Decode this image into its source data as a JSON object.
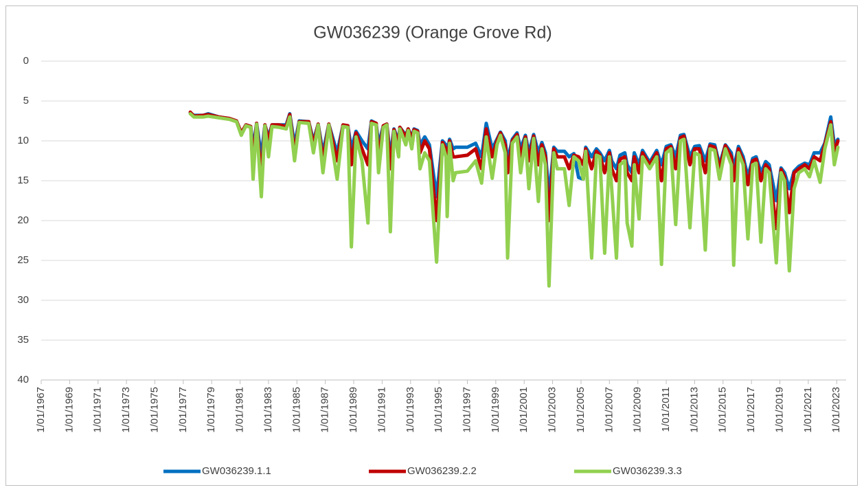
{
  "chart_data": {
    "type": "line",
    "title": "GW036239 (Orange Grove Rd)",
    "x": [
      "1977-07-01",
      "1977-10-01",
      "1978-06-01",
      "1978-10-01",
      "1979-07-01",
      "1980-04-01",
      "1980-10-01",
      "1981-02-01",
      "1981-06-01",
      "1981-10-01",
      "1981-12-01",
      "1982-03-01",
      "1982-07-01",
      "1982-10-01",
      "1983-01-01",
      "1983-04-01",
      "1983-10-01",
      "1984-04-01",
      "1984-07-01",
      "1984-11-01",
      "1985-03-01",
      "1985-11-01",
      "1986-03-01",
      "1986-07-01",
      "1986-11-01",
      "1987-04-01",
      "1987-11-01",
      "1988-04-01",
      "1988-08-01",
      "1988-11-01",
      "1989-03-01",
      "1989-08-01",
      "1990-01-01",
      "1990-04-01",
      "1990-08-01",
      "1990-10-01",
      "1991-02-01",
      "1991-05-01",
      "1991-08-01",
      "1991-11-01",
      "1992-03-01",
      "1992-04-01",
      "1992-09-01",
      "1992-11-01",
      "1993-02-01",
      "1993-04-01",
      "1993-07-01",
      "1993-09-01",
      "1994-01-01",
      "1994-05-01",
      "1994-11-01",
      "1995-04-01",
      "1995-07-01",
      "1995-08-01",
      "1995-10-01",
      "1996-01-01",
      "1996-03-01",
      "1997-01-01",
      "1997-08-01",
      "1998-01-01",
      "1998-05-01",
      "1998-10-01",
      "1999-02-01",
      "1999-05-01",
      "1999-09-01",
      "1999-11-01",
      "2000-03-01",
      "2000-07-01",
      "2000-10-01",
      "2001-02-01",
      "2001-05-01",
      "2001-09-01",
      "2002-01-01",
      "2002-04-01",
      "2002-07-01",
      "2002-10-01",
      "2003-02-01",
      "2003-05-01",
      "2003-11-01",
      "2004-03-01",
      "2004-07-01",
      "2004-11-01",
      "2005-03-01",
      "2005-05-01",
      "2005-10-01",
      "2006-02-01",
      "2006-05-01",
      "2006-09-01",
      "2007-01-01",
      "2007-03-01",
      "2007-07-01",
      "2007-10-01",
      "2008-02-01",
      "2008-04-01",
      "2008-08-01",
      "2008-10-01",
      "2009-02-01",
      "2009-05-01",
      "2009-11-01",
      "2010-05-01",
      "2010-09-01",
      "2011-01-01",
      "2011-05-01",
      "2011-09-01",
      "2012-01-01",
      "2012-04-01",
      "2012-09-01",
      "2013-01-01",
      "2013-05-01",
      "2013-10-01",
      "2014-02-01",
      "2014-06-01",
      "2014-10-01",
      "2015-03-01",
      "2015-08-01",
      "2015-10-01",
      "2016-02-01",
      "2016-06-01",
      "2016-10-01",
      "2017-02-01",
      "2017-05-01",
      "2017-09-01",
      "2018-01-01",
      "2018-04-01",
      "2018-10-01",
      "2019-02-01",
      "2019-05-01",
      "2019-09-01",
      "2020-01-01",
      "2020-05-01",
      "2020-10-01",
      "2021-02-01",
      "2021-06-01",
      "2021-11-01",
      "2022-03-01",
      "2022-08-01",
      "2022-11-01",
      "2023-02-01"
    ],
    "series": [
      {
        "name": "GW036239.1.1",
        "color": "#0070c0",
        "values": [
          6.5,
          6.8,
          6.8,
          6.6,
          7.0,
          7.2,
          7.5,
          9.0,
          8.0,
          8.2,
          11.0,
          7.8,
          12.0,
          8.0,
          9.5,
          8.0,
          8.0,
          8.0,
          6.6,
          10.5,
          7.5,
          7.6,
          10.0,
          7.9,
          11.5,
          7.9,
          11.5,
          8.0,
          8.1,
          11.0,
          8.8,
          10.0,
          11.0,
          7.5,
          7.8,
          10.5,
          8.1,
          7.9,
          12.0,
          8.5,
          10.0,
          8.3,
          9.3,
          8.5,
          9.5,
          8.5,
          8.7,
          10.5,
          9.5,
          10.5,
          17.0,
          10.0,
          10.5,
          11.5,
          9.8,
          11.0,
          10.8,
          10.8,
          10.3,
          12.0,
          7.8,
          11.0,
          9.8,
          8.9,
          10.0,
          12.5,
          9.8,
          9.0,
          11.0,
          9.3,
          11.5,
          9.2,
          11.5,
          10.2,
          11.5,
          17.0,
          10.8,
          11.3,
          11.3,
          12.0,
          11.6,
          14.6,
          14.8,
          10.8,
          12.0,
          11.0,
          11.5,
          12.5,
          11.2,
          12.5,
          13.5,
          11.8,
          11.5,
          13.0,
          14.0,
          11.5,
          13.0,
          11.2,
          12.7,
          11.2,
          13.0,
          10.7,
          10.5,
          12.0,
          9.3,
          9.2,
          12.0,
          10.7,
          10.6,
          12.5,
          10.4,
          10.5,
          13.0,
          10.5,
          11.5,
          13.5,
          10.7,
          12.0,
          14.5,
          12.2,
          12.0,
          14.0,
          12.6,
          13.0,
          17.5,
          13.4,
          14.0,
          16.0,
          13.8,
          13.2,
          12.8,
          13.0,
          11.5,
          11.5,
          10.3,
          7.0,
          10.5,
          9.8
        ]
      },
      {
        "name": "GW036239.2.2",
        "color": "#c00000",
        "values": [
          6.4,
          6.9,
          6.8,
          6.7,
          7.0,
          7.2,
          7.5,
          9.0,
          8.0,
          8.2,
          12.5,
          7.8,
          14.5,
          8.0,
          10.0,
          8.0,
          8.0,
          8.2,
          6.7,
          11.5,
          7.6,
          7.6,
          10.5,
          7.9,
          12.5,
          7.9,
          12.5,
          8.0,
          8.1,
          13.0,
          9.0,
          11.0,
          13.0,
          7.6,
          7.8,
          12.0,
          8.1,
          7.9,
          13.5,
          8.6,
          10.5,
          8.3,
          9.5,
          8.5,
          9.8,
          8.6,
          8.8,
          11.5,
          10.0,
          11.0,
          20.0,
          10.2,
          11.0,
          13.0,
          10.0,
          12.0,
          12.0,
          11.8,
          11.0,
          13.5,
          8.5,
          12.0,
          10.0,
          9.0,
          10.5,
          14.0,
          10.0,
          9.2,
          12.0,
          9.5,
          12.5,
          9.4,
          13.0,
          10.5,
          12.0,
          20.0,
          11.0,
          12.0,
          12.0,
          13.5,
          11.8,
          12.0,
          13.0,
          11.0,
          13.5,
          11.3,
          11.8,
          14.0,
          11.5,
          13.5,
          15.0,
          12.3,
          12.0,
          14.0,
          15.0,
          12.0,
          14.0,
          11.5,
          13.0,
          11.5,
          15.0,
          11.0,
          10.7,
          13.5,
          9.6,
          9.4,
          13.0,
          11.0,
          11.0,
          14.0,
          10.6,
          10.8,
          13.5,
          10.6,
          12.0,
          15.0,
          11.0,
          12.5,
          15.5,
          12.5,
          12.3,
          15.0,
          13.0,
          13.5,
          21.0,
          13.6,
          14.5,
          19.0,
          14.0,
          13.5,
          13.0,
          13.5,
          12.0,
          12.5,
          10.5,
          7.6,
          11.5,
          10.0
        ]
      },
      {
        "name": "GW036239.3.3",
        "color": "#92d050",
        "values": [
          6.6,
          7.0,
          7.0,
          6.9,
          7.1,
          7.3,
          7.6,
          9.3,
          8.1,
          8.3,
          14.8,
          7.9,
          17.0,
          8.1,
          12.0,
          8.2,
          8.3,
          8.5,
          7.0,
          12.5,
          7.7,
          7.8,
          11.5,
          8.0,
          14.0,
          8.0,
          14.8,
          8.2,
          8.3,
          23.3,
          9.5,
          12.5,
          20.3,
          7.8,
          8.0,
          14.0,
          8.3,
          8.0,
          21.4,
          8.8,
          12.0,
          8.5,
          10.5,
          8.7,
          11.0,
          8.8,
          9.0,
          13.5,
          11.5,
          12.5,
          25.2,
          10.5,
          12.0,
          19.5,
          10.3,
          15.0,
          14.0,
          13.8,
          12.5,
          15.3,
          9.5,
          14.7,
          10.5,
          9.3,
          11.5,
          24.7,
          10.3,
          9.5,
          14.0,
          9.8,
          16.0,
          9.7,
          17.6,
          11.0,
          13.0,
          28.2,
          11.5,
          13.5,
          13.5,
          18.1,
          12.0,
          12.5,
          14.8,
          11.3,
          24.7,
          11.8,
          12.0,
          24.1,
          12.0,
          16.0,
          24.7,
          13.0,
          12.5,
          20.3,
          23.2,
          13.0,
          19.8,
          12.0,
          13.5,
          12.0,
          25.5,
          11.5,
          11.0,
          20.5,
          10.0,
          9.8,
          20.9,
          11.5,
          11.8,
          23.7,
          11.0,
          11.2,
          14.8,
          11.0,
          13.0,
          25.6,
          11.5,
          13.0,
          22.3,
          13.0,
          12.8,
          22.7,
          13.5,
          14.0,
          25.3,
          14.0,
          15.0,
          26.3,
          16.0,
          14.0,
          13.5,
          14.5,
          12.5,
          15.2,
          11.0,
          8.0,
          13.0,
          10.8
        ]
      }
    ],
    "xlim": [
      "1967-01-01",
      "2023-09-01"
    ],
    "xticks": [
      {
        "value": "1967-01-01",
        "label": "1/01/1967"
      },
      {
        "value": "1969-01-01",
        "label": "1/01/1969"
      },
      {
        "value": "1971-01-01",
        "label": "1/01/1971"
      },
      {
        "value": "1973-01-01",
        "label": "1/01/1973"
      },
      {
        "value": "1975-01-01",
        "label": "1/01/1975"
      },
      {
        "value": "1977-01-01",
        "label": "1/01/1977"
      },
      {
        "value": "1979-01-01",
        "label": "1/01/1979"
      },
      {
        "value": "1981-01-01",
        "label": "1/01/1981"
      },
      {
        "value": "1983-01-01",
        "label": "1/01/1983"
      },
      {
        "value": "1985-01-01",
        "label": "1/01/1985"
      },
      {
        "value": "1987-01-01",
        "label": "1/01/1987"
      },
      {
        "value": "1989-01-01",
        "label": "1/01/1989"
      },
      {
        "value": "1991-01-01",
        "label": "1/01/1991"
      },
      {
        "value": "1993-01-01",
        "label": "1/01/1993"
      },
      {
        "value": "1995-01-01",
        "label": "1/01/1995"
      },
      {
        "value": "1997-01-01",
        "label": "1/01/1997"
      },
      {
        "value": "1999-01-01",
        "label": "1/01/1999"
      },
      {
        "value": "2001-01-01",
        "label": "1/01/2001"
      },
      {
        "value": "2003-01-01",
        "label": "1/01/2003"
      },
      {
        "value": "2005-01-01",
        "label": "1/01/2005"
      },
      {
        "value": "2007-01-01",
        "label": "1/01/2007"
      },
      {
        "value": "2009-01-01",
        "label": "1/01/2009"
      },
      {
        "value": "2011-01-01",
        "label": "1/01/2011"
      },
      {
        "value": "2013-01-01",
        "label": "1/01/2013"
      },
      {
        "value": "2015-01-01",
        "label": "1/01/2015"
      },
      {
        "value": "2017-01-01",
        "label": "1/01/2017"
      },
      {
        "value": "2019-01-01",
        "label": "1/01/2019"
      },
      {
        "value": "2021-01-01",
        "label": "1/01/2021"
      },
      {
        "value": "2023-01-01",
        "label": "1/01/2023"
      }
    ],
    "ylim": [
      0,
      40
    ],
    "yticks": [
      0,
      5,
      10,
      15,
      20,
      25,
      30,
      35,
      40
    ],
    "y_reversed": true,
    "grid": true,
    "legend": "bottom"
  }
}
